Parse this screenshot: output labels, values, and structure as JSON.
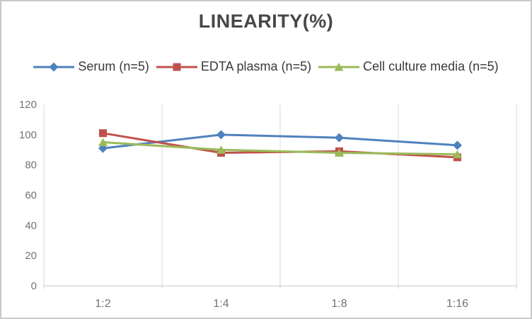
{
  "chart_data": {
    "type": "line",
    "title": "LINEARITY(%)",
    "categories": [
      "1:2",
      "1:4",
      "1:8",
      "1:16"
    ],
    "series": [
      {
        "name": "Serum (n=5)",
        "marker": "diamond",
        "color": "#4F81BD",
        "values": [
          91,
          100,
          98,
          93
        ]
      },
      {
        "name": "EDTA plasma (n=5)",
        "marker": "square",
        "color": "#C0504D",
        "values": [
          101,
          88,
          89,
          85
        ]
      },
      {
        "name": "Cell culture media (n=5)",
        "marker": "triangle",
        "color": "#9BBB59",
        "values": [
          95,
          90,
          88,
          87
        ]
      }
    ],
    "ylim": [
      0,
      120
    ],
    "yticks": [
      0,
      20,
      40,
      60,
      80,
      100,
      120
    ],
    "grid": "vertical-only",
    "legend_position": "top-center"
  },
  "styles": {
    "title_color": "#474747",
    "legend_text_color": "#3a3a3a",
    "tick_label_color": "#737373",
    "gridline_color": "#d9d9d9",
    "axis_line_color": "#c9c9c9",
    "frame_border_color": "#c9c9c9",
    "background": "#ffffff"
  }
}
